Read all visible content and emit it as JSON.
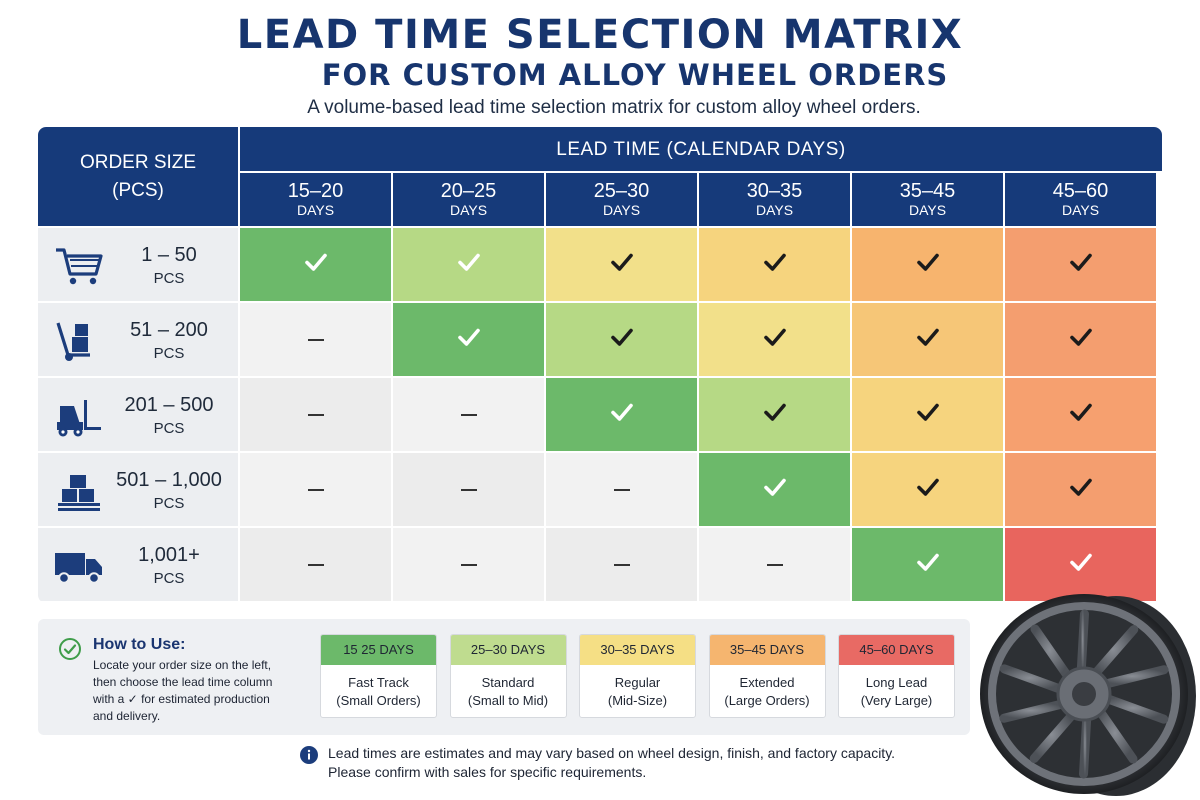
{
  "title": "LEAD TIME SELECTION MATRIX",
  "subtitle": "FOR CUSTOM ALLOY WHEEL ORDERS",
  "tagline": "A volume-based lead time selection matrix for custom alloy wheel orders.",
  "matrix": {
    "order_header": {
      "line1": "ORDER SIZE",
      "line2": "(PCS)"
    },
    "lead_header": "LEAD TIME (CALENDAR DAYS)",
    "columns": [
      {
        "range": "15–20",
        "unit": "DAYS"
      },
      {
        "range": "20–25",
        "unit": "DAYS"
      },
      {
        "range": "25–30",
        "unit": "DAYS"
      },
      {
        "range": "30–35",
        "unit": "DAYS"
      },
      {
        "range": "35–45",
        "unit": "DAYS"
      },
      {
        "range": "45–60",
        "unit": "DAYS"
      }
    ],
    "rows": [
      {
        "qty": "1 – 50",
        "unit": "PCS",
        "icon": "shopping-cart-icon",
        "cells": [
          "check-white",
          "check-white",
          "check",
          "check",
          "check",
          "check"
        ]
      },
      {
        "qty": "51 – 200",
        "unit": "PCS",
        "icon": "hand-truck-icon",
        "cells": [
          "dash",
          "check-white",
          "check",
          "check",
          "check",
          "check"
        ]
      },
      {
        "qty": "201 – 500",
        "unit": "PCS",
        "icon": "forklift-icon",
        "cells": [
          "dash",
          "dash",
          "check-white",
          "check",
          "check",
          "check"
        ]
      },
      {
        "qty": "501 – 1,000",
        "unit": "PCS",
        "icon": "pallet-boxes-icon",
        "cells": [
          "dash",
          "dash",
          "dash",
          "check-white",
          "check",
          "check"
        ]
      },
      {
        "qty": "1,001+",
        "unit": "PCS",
        "icon": "delivery-truck-icon",
        "cells": [
          "dash",
          "dash",
          "dash",
          "dash",
          "check-white",
          "check-white"
        ]
      }
    ],
    "cell_colors": [
      [
        "#6cb96a",
        "#b6d985",
        "#f2e08a",
        "#f6d47e",
        "#f7b46e",
        "#f49e6f"
      ],
      [
        "#f2f2f2",
        "#6cb96a",
        "#b6d985",
        "#f2e08a",
        "#f6c677",
        "#f49e6f"
      ],
      [
        "#ececec",
        "#f2f2f2",
        "#6cb96a",
        "#b6d985",
        "#f6d47e",
        "#f6a06f"
      ],
      [
        "#f2f2f2",
        "#ececec",
        "#f2f2f2",
        "#6cb96a",
        "#f6d47e",
        "#f49e6f"
      ],
      [
        "#ececec",
        "#f2f2f2",
        "#ececec",
        "#f2f2f2",
        "#6cb96a",
        "#e8655e"
      ]
    ]
  },
  "how_to_use": {
    "title": "How to Use:",
    "text": "Locate your order size on the left, then choose the lead time column with a ✓ for estimated production and delivery."
  },
  "legend": [
    {
      "range": "15  25 DAYS",
      "name": "Fast Track",
      "sub": "(Small Orders)",
      "color": "#6cb96a"
    },
    {
      "range": "25–30 DAYS",
      "name": "Standard",
      "sub": "(Small to Mid)",
      "color": "#bfdc8f"
    },
    {
      "range": "30–35 DAYS",
      "name": "Regular",
      "sub": "(Mid-Size)",
      "color": "#f5df85"
    },
    {
      "range": "35–45 DAYS",
      "name": "Extended",
      "sub": "(Large Orders)",
      "color": "#f5b56f"
    },
    {
      "range": "45–60 DAYS",
      "name": "Long Lead",
      "sub": "(Very Large)",
      "color": "#e86a64"
    }
  ],
  "note": {
    "line1": "Lead times are estimates and may vary based on wheel design, finish, and factory capacity.",
    "line2": "Please confirm with sales for specific requirements."
  },
  "colors": {
    "navy": "#163a7a",
    "title": "#17356e"
  }
}
